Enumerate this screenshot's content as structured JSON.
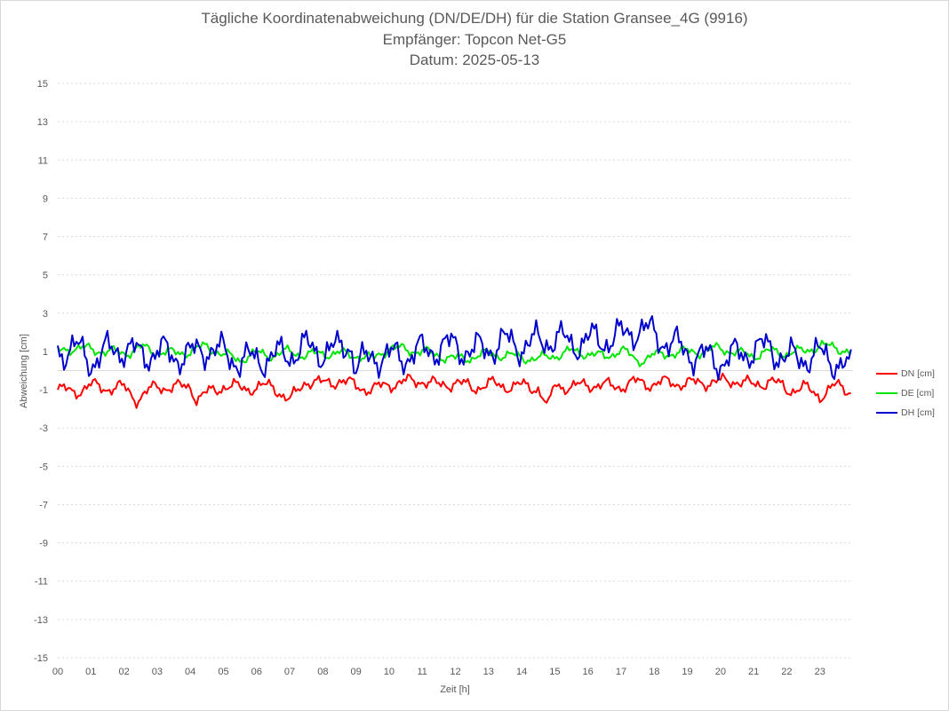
{
  "chart_data": {
    "type": "line",
    "title": "Tägliche Koordinatenabweichung (DN/DE/DH) für die Station Gransee_4G (9916)",
    "subtitle_receiver": "Empfänger: Topcon Net-G5",
    "subtitle_date": "Datum: 2025-05-13",
    "xlabel": "Zeit [h]",
    "ylabel": "Abweichung [cm]",
    "xlim": [
      0,
      24
    ],
    "ylim": [
      -15,
      15
    ],
    "x_ticks": [
      "00",
      "01",
      "02",
      "03",
      "04",
      "05",
      "06",
      "07",
      "08",
      "09",
      "10",
      "11",
      "12",
      "13",
      "14",
      "15",
      "16",
      "17",
      "18",
      "19",
      "20",
      "21",
      "22",
      "23"
    ],
    "y_ticks": [
      15,
      13,
      11,
      9,
      7,
      5,
      3,
      1,
      -1,
      -3,
      -5,
      -7,
      -9,
      -11,
      -13,
      -15
    ],
    "grid": "horizontal-dotted",
    "legend_position": "right",
    "sample_interval_h": 0.0625,
    "series": [
      {
        "name": "DN [cm]",
        "color": "#ff0000",
        "anchor_x": [
          0,
          0.5,
          1,
          1.5,
          2,
          2.4,
          3,
          3.5,
          4,
          4.2,
          4.5,
          5,
          5.5,
          6,
          6.5,
          7,
          7.5,
          8,
          8.5,
          9,
          9.5,
          10,
          10.5,
          11,
          11.5,
          12,
          12.5,
          13,
          13.5,
          14,
          14.5,
          14.8,
          15,
          15.5,
          16,
          16.5,
          17,
          17.5,
          18,
          18.5,
          19,
          19.5,
          20,
          20.5,
          21,
          21.5,
          22,
          22.5,
          23,
          23.5,
          23.9
        ],
        "anchor_y": [
          -1.0,
          -1.1,
          -0.8,
          -0.9,
          -0.9,
          -1.5,
          -0.8,
          -0.9,
          -0.8,
          -1.5,
          -1.2,
          -0.8,
          -0.9,
          -0.9,
          -0.8,
          -1.6,
          -0.5,
          -0.7,
          -0.5,
          -0.8,
          -1.0,
          -0.7,
          -0.6,
          -0.5,
          -0.8,
          -0.6,
          -0.9,
          -0.7,
          -0.8,
          -0.8,
          -0.9,
          -2.0,
          -0.7,
          -0.9,
          -0.7,
          -0.8,
          -0.8,
          -0.6,
          -0.7,
          -0.6,
          -0.7,
          -0.6,
          -0.6,
          -0.5,
          -0.8,
          -0.5,
          -1.0,
          -0.9,
          -1.3,
          -0.8,
          -1.0
        ],
        "noise_amplitude": 0.45,
        "phase": 0
      },
      {
        "name": "DE [cm]",
        "color": "#00e600",
        "anchor_x": [
          0,
          0.5,
          1,
          1.5,
          2,
          2.5,
          3,
          3.5,
          4,
          4.5,
          5,
          5.5,
          6,
          6.5,
          7,
          7.5,
          8,
          8.5,
          9,
          9.5,
          10,
          10.5,
          11,
          11.5,
          12,
          12.5,
          13,
          13.5,
          14,
          14.5,
          15,
          15.5,
          16,
          16.5,
          17,
          17.5,
          18,
          18.5,
          19,
          19.5,
          20,
          20.5,
          21,
          21.5,
          22,
          22.5,
          23,
          23.5,
          23.9
        ],
        "anchor_y": [
          1.0,
          1.2,
          1.1,
          1.0,
          0.9,
          1.2,
          1.0,
          0.9,
          1.0,
          1.3,
          0.8,
          0.6,
          0.9,
          0.8,
          1.0,
          0.8,
          0.9,
          0.9,
          0.8,
          0.6,
          1.2,
          1.1,
          1.0,
          0.8,
          0.6,
          0.7,
          0.9,
          0.8,
          0.7,
          0.6,
          0.8,
          1.0,
          0.9,
          0.7,
          1.1,
          0.5,
          0.8,
          0.9,
          1.0,
          1.0,
          1.2,
          0.9,
          0.8,
          1.0,
          0.9,
          1.0,
          1.3,
          1.2,
          1.0
        ],
        "noise_amplitude": 0.35,
        "phase": 1.7
      },
      {
        "name": "DH [cm]",
        "color": "#0000cc",
        "anchor_x": [
          0,
          0.5,
          1,
          1.5,
          2,
          2.5,
          3,
          3.5,
          4,
          4.5,
          5,
          5.5,
          6,
          6.5,
          7,
          7.5,
          8,
          8.5,
          8.8,
          9,
          9.5,
          10,
          10.5,
          11,
          11.5,
          12,
          12.5,
          13,
          13.5,
          14,
          14.5,
          15,
          15.5,
          16,
          16.5,
          17,
          17.5,
          18,
          18.5,
          19,
          19.5,
          20,
          20.5,
          21,
          21.5,
          22,
          22.5,
          23,
          23.5,
          23.9
        ],
        "anchor_y": [
          1.0,
          1.2,
          0.5,
          1.0,
          1.2,
          0.8,
          1.0,
          0.8,
          0.8,
          1.2,
          0.9,
          0.5,
          0.6,
          0.7,
          0.9,
          1.2,
          1.0,
          1.1,
          1.6,
          0.1,
          0.8,
          0.7,
          0.8,
          1.0,
          1.2,
          1.3,
          1.0,
          1.2,
          1.5,
          1.3,
          1.5,
          1.7,
          1.4,
          1.6,
          1.6,
          1.8,
          2.2,
          1.9,
          1.4,
          1.0,
          0.7,
          0.5,
          0.8,
          1.1,
          1.2,
          0.6,
          0.7,
          0.8,
          0.5,
          0.0
        ],
        "noise_amplitude": 1.1,
        "phase": 3.3
      }
    ]
  }
}
